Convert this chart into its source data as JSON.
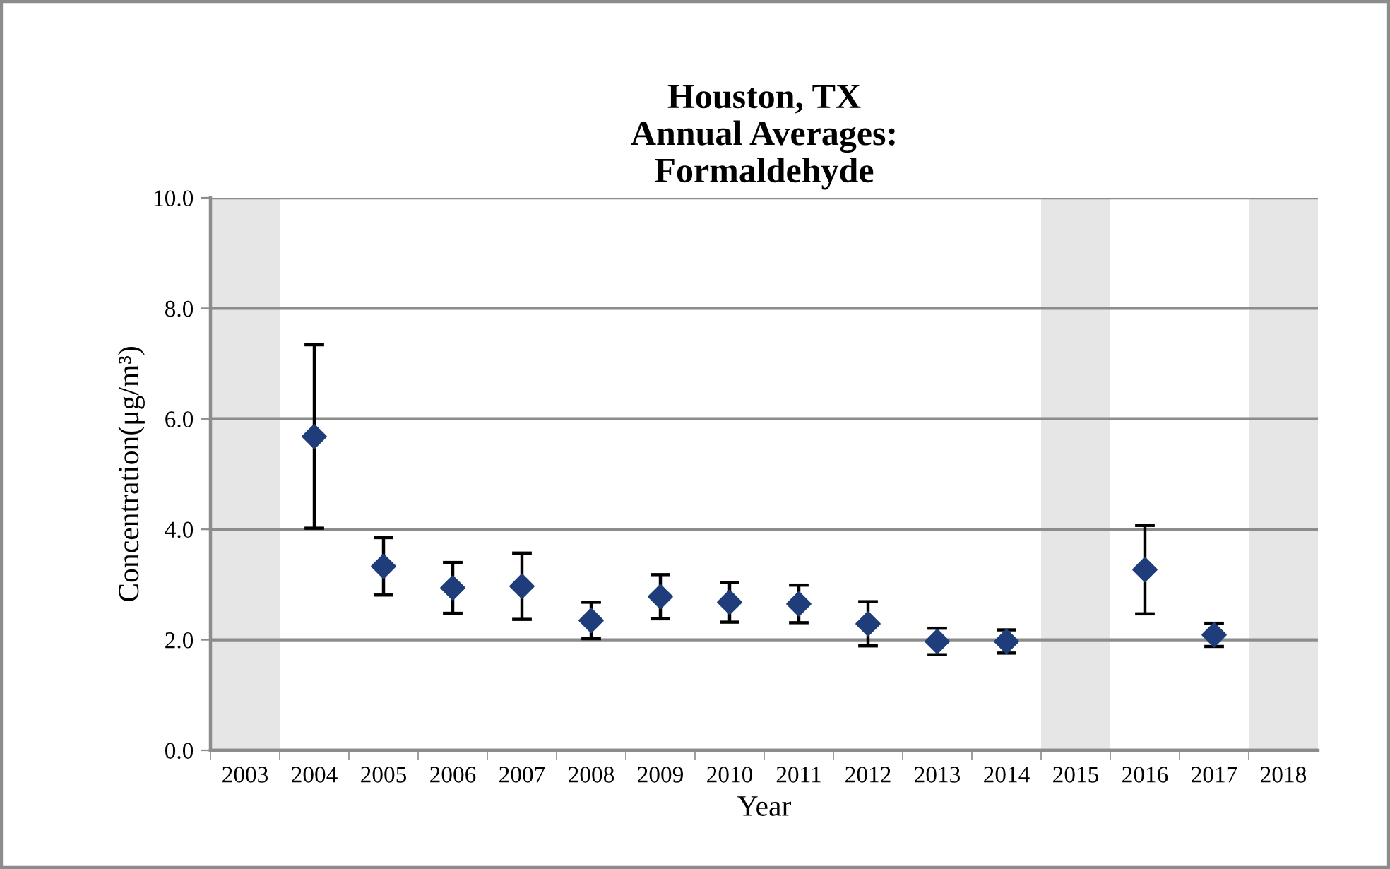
{
  "chart_data": {
    "type": "scatter",
    "title": "Houston, TX\nAnnual Averages:\nFormaldehyde",
    "xlabel": "Year",
    "ylabel": "Concentration(μg/m³)",
    "categories": [
      "2003",
      "2004",
      "2005",
      "2006",
      "2007",
      "2008",
      "2009",
      "2010",
      "2011",
      "2012",
      "2013",
      "2014",
      "2015",
      "2016",
      "2017",
      "2018"
    ],
    "series": [
      {
        "color": "#1f3d7a",
        "values": [
          null,
          5.68,
          3.33,
          2.94,
          2.97,
          2.35,
          2.78,
          2.68,
          2.65,
          2.29,
          1.97,
          1.97,
          null,
          3.27,
          2.09,
          null
        ],
        "errors": [
          null,
          1.66,
          0.52,
          0.46,
          0.6,
          0.33,
          0.4,
          0.36,
          0.34,
          0.4,
          0.24,
          0.21,
          null,
          0.8,
          0.21,
          null
        ]
      }
    ],
    "ylim": [
      0,
      10
    ],
    "yticks": [
      {
        "value": 0,
        "label": "0.0"
      },
      {
        "value": 2,
        "label": "2.0"
      },
      {
        "value": 4,
        "label": "4.0"
      },
      {
        "value": 6,
        "label": "6.0"
      },
      {
        "value": 8,
        "label": "8.0"
      },
      {
        "value": 10,
        "label": "10.0"
      }
    ],
    "bands": [
      {
        "axis": "x",
        "from": "2003",
        "to": "2003",
        "color": "#e6e6e6"
      },
      {
        "axis": "x",
        "from": "2015",
        "to": "2015",
        "color": "#e6e6e6"
      },
      {
        "axis": "x",
        "from": "2018",
        "to": "2018",
        "color": "#e6e6e6"
      }
    ],
    "grid": "y",
    "marker": "diamond",
    "legend": false
  }
}
